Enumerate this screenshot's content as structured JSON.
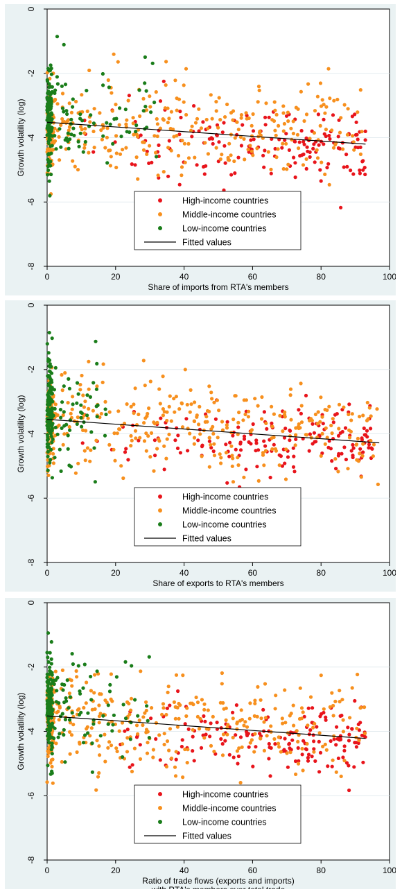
{
  "colors": {
    "high_income": "#e8141b",
    "middle_income": "#f7901e",
    "low_income": "#1a7d1a",
    "fitted_line": "#000000",
    "panel_background": "#eaf2f3",
    "plot_background": "#ffffff",
    "gridline": "#e3ebef"
  },
  "chart_data": [
    {
      "type": "scatter",
      "xlabel": "Share of imports from RTA's members",
      "ylabel": "Growth volatility (log)",
      "xlim": [
        0,
        100
      ],
      "ylim": [
        -8,
        0
      ],
      "x_ticks": [
        "0",
        "20",
        "40",
        "60",
        "80",
        "100"
      ],
      "y_ticks": [
        "0",
        "-2",
        "-4",
        "-6",
        "-8"
      ],
      "grid": "horizontal",
      "legend_placement": "bottom-center",
      "legend": [
        "High-income countries",
        "Middle-income countries",
        "Low-income countries",
        "Fitted values"
      ],
      "series": [
        {
          "name": "High-income countries",
          "color": "#e8141b",
          "x_range": [
            5,
            93
          ],
          "y_mean": -4.1,
          "y_sd": 0.55,
          "approx_count": 170
        },
        {
          "name": "Middle-income countries",
          "color": "#f7901e",
          "x_range": [
            0,
            92
          ],
          "y_mean": -3.75,
          "y_sd": 0.75,
          "approx_count": 380
        },
        {
          "name": "Low-income countries",
          "color": "#1a7d1a",
          "x_range": [
            0,
            32
          ],
          "y_mean": -3.5,
          "y_sd": 0.85,
          "approx_count": 200
        }
      ],
      "fitted_line": {
        "x": [
          0,
          93
        ],
        "y": [
          -3.52,
          -4.2
        ]
      }
    },
    {
      "type": "scatter",
      "xlabel": "Share of exports to RTA's members",
      "ylabel": "Growth volatility (log)",
      "xlim": [
        0,
        100
      ],
      "ylim": [
        -8,
        0
      ],
      "x_ticks": [
        "0",
        "20",
        "40",
        "60",
        "80",
        "100"
      ],
      "y_ticks": [
        "0",
        "-2",
        "-4",
        "-6",
        "-8"
      ],
      "grid": "horizontal",
      "legend_placement": "bottom-center",
      "legend": [
        "High-income countries",
        "Middle-income countries",
        "Low-income countries",
        "Fitted values"
      ],
      "series": [
        {
          "name": "High-income countries",
          "color": "#e8141b",
          "x_range": [
            5,
            95
          ],
          "y_mean": -4.1,
          "y_sd": 0.55,
          "approx_count": 170
        },
        {
          "name": "Middle-income countries",
          "color": "#f7901e",
          "x_range": [
            0,
            97
          ],
          "y_mean": -3.8,
          "y_sd": 0.75,
          "approx_count": 380
        },
        {
          "name": "Low-income countries",
          "color": "#1a7d1a",
          "x_range": [
            0,
            18
          ],
          "y_mean": -3.5,
          "y_sd": 0.85,
          "approx_count": 200
        }
      ],
      "fitted_line": {
        "x": [
          0,
          97
        ],
        "y": [
          -3.55,
          -4.28
        ]
      }
    },
    {
      "type": "scatter",
      "xlabel": "Ratio of trade flows (exports and imports)",
      "xlabel_line2": "with RTA's members over total trade",
      "ylabel": "Growth volatility (log)",
      "xlim": [
        0,
        100
      ],
      "ylim": [
        -8,
        0
      ],
      "x_ticks": [
        "0",
        "20",
        "40",
        "60",
        "80",
        "100"
      ],
      "y_ticks": [
        "0",
        "-2",
        "-4",
        "-6",
        "-8"
      ],
      "grid": "horizontal",
      "legend_placement": "bottom-center",
      "legend": [
        "High-income countries",
        "Middle-income countries",
        "Low-income countries",
        "Fitted values"
      ],
      "series": [
        {
          "name": "High-income countries",
          "color": "#e8141b",
          "x_range": [
            5,
            93
          ],
          "y_mean": -4.1,
          "y_sd": 0.55,
          "approx_count": 170
        },
        {
          "name": "Middle-income countries",
          "color": "#f7901e",
          "x_range": [
            0,
            93
          ],
          "y_mean": -3.8,
          "y_sd": 0.75,
          "approx_count": 380
        },
        {
          "name": "Low-income countries",
          "color": "#1a7d1a",
          "x_range": [
            0,
            30
          ],
          "y_mean": -3.5,
          "y_sd": 0.85,
          "approx_count": 200
        }
      ],
      "fitted_line": {
        "x": [
          0,
          93
        ],
        "y": [
          -3.52,
          -4.22
        ]
      }
    }
  ]
}
